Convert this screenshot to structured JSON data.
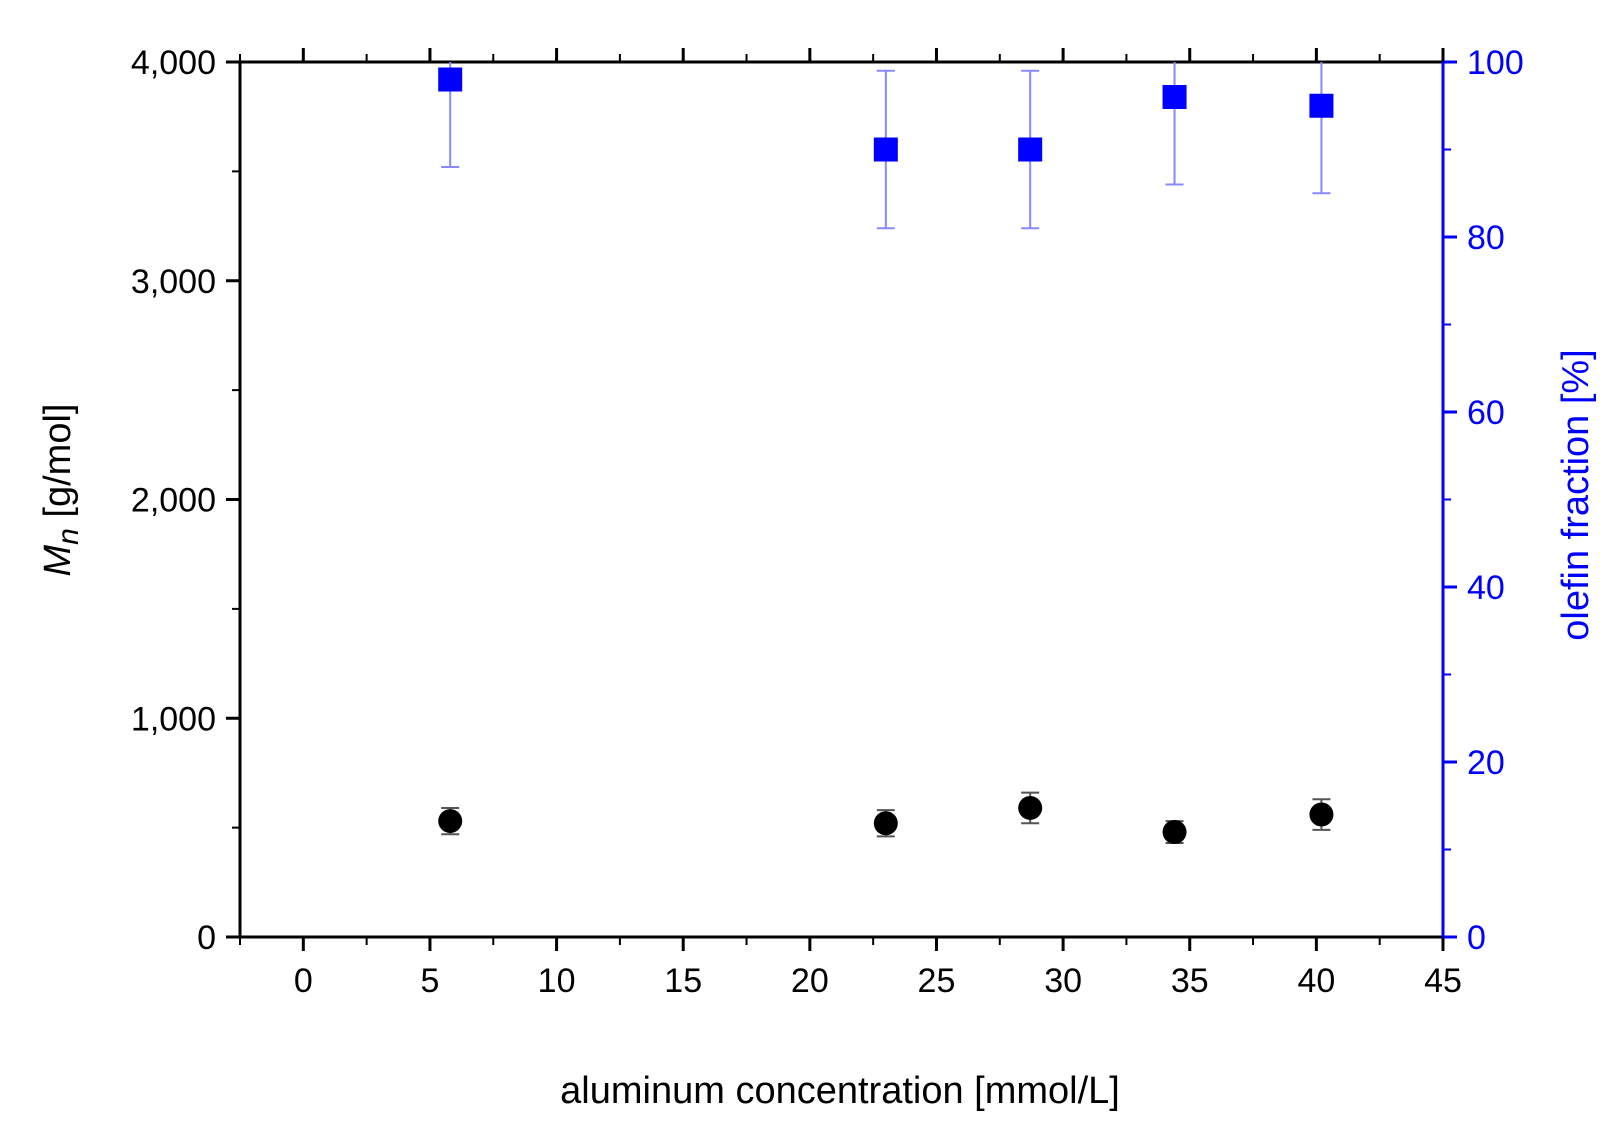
{
  "chart_data": {
    "type": "scatter",
    "xlabel": "aluminum concentration [mmol/L]",
    "ylabel_main": "M",
    "ylabel_sub": "n",
    "ylabel_rest": " [g/mol]",
    "y2label": "olefin fraction [%]",
    "xlim": [
      -2.5,
      45
    ],
    "ylim": [
      0,
      4000
    ],
    "y2lim": [
      0,
      100
    ],
    "xticks": [
      0,
      5,
      10,
      15,
      20,
      25,
      30,
      35,
      40,
      45
    ],
    "xtick_labels": [
      "0",
      "5",
      "10",
      "15",
      "20",
      "25",
      "30",
      "35",
      "40",
      "45"
    ],
    "yticks": [
      0,
      1000,
      2000,
      3000,
      4000
    ],
    "ytick_labels": [
      "0",
      "1,000",
      "2,000",
      "3,000",
      "4,000"
    ],
    "y2ticks": [
      0,
      20,
      40,
      60,
      80,
      100
    ],
    "y2tick_labels": [
      "0",
      "20",
      "40",
      "60",
      "80",
      "100"
    ],
    "grid": false,
    "series": [
      {
        "axis": "left",
        "marker": "circle",
        "color": "#000000",
        "x": [
          5.8,
          23.0,
          28.7,
          34.4,
          40.2
        ],
        "y": [
          530,
          520,
          590,
          480,
          560
        ],
        "err": [
          60,
          60,
          70,
          50,
          70
        ]
      },
      {
        "axis": "right",
        "marker": "square",
        "color": "#0000ff",
        "x": [
          5.8,
          23.0,
          28.7,
          34.4,
          40.2
        ],
        "y": [
          98,
          90,
          90,
          96,
          95
        ],
        "err_low": [
          10,
          9,
          9,
          10,
          10
        ],
        "err_high": [
          2,
          9,
          9,
          4,
          5
        ]
      }
    ]
  }
}
